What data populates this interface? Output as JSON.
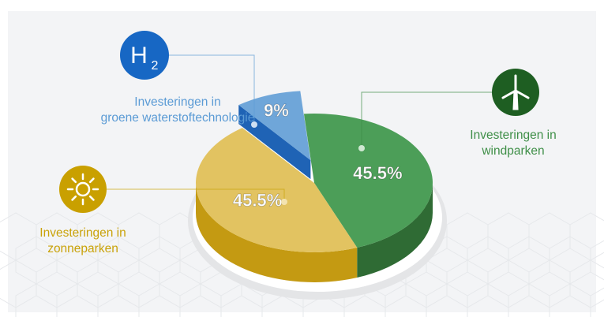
{
  "chart_data": {
    "type": "pie",
    "categories": [
      "Investeringen in\ngroene waterstoftechnologie",
      "Investeringen in\nwindparken",
      "Investeringen in\nzonneparken"
    ],
    "values": [
      9,
      45.5,
      45.5
    ],
    "value_labels": [
      "9%",
      "45.5%",
      "45.5%"
    ],
    "colors": [
      "#6fa6d9",
      "#4c9e58",
      "#e2c361"
    ],
    "side_colors": [
      "#1f63b5",
      "#2f6b34",
      "#c49a12"
    ],
    "label_colors": [
      "#5b9bd5",
      "#3f8f48",
      "#c9a208"
    ],
    "icon_colors": [
      "#1767c4",
      "#1e5e22",
      "#c9a000"
    ],
    "hydrogen_icon": {
      "symbol": "H",
      "subscript": "2"
    }
  }
}
